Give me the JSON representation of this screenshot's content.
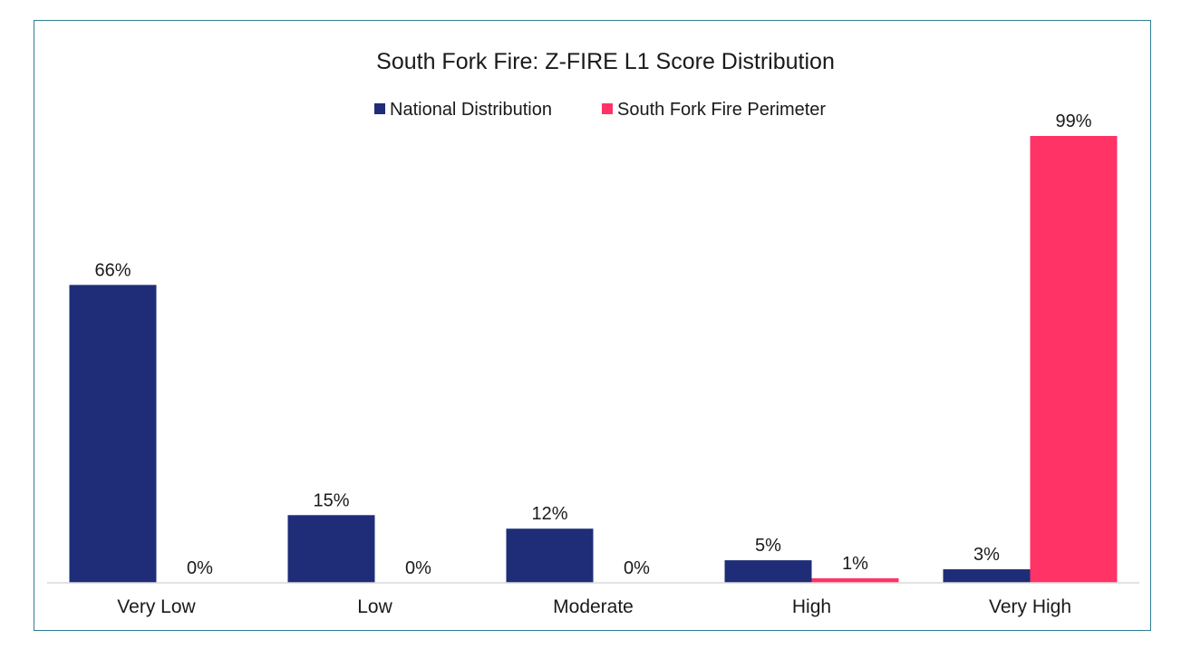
{
  "chart_data": {
    "type": "bar",
    "title": "South Fork Fire: Z-FIRE L1 Score Distribution",
    "xlabel": "",
    "ylabel": "",
    "categories": [
      "Very Low",
      "Low",
      "Moderate",
      "High",
      "Very High"
    ],
    "series": [
      {
        "name": "National Distribution",
        "color": "#1f2d78",
        "values": [
          66,
          15,
          12,
          5,
          3
        ],
        "labels": [
          "66%",
          "15%",
          "12%",
          "5%",
          "3%"
        ]
      },
      {
        "name": "South Fork Fire Perimeter",
        "color": "#ff3366",
        "values": [
          0,
          0,
          0,
          1,
          99
        ],
        "labels": [
          "0%",
          "0%",
          "0%",
          "1%",
          "99%"
        ]
      }
    ],
    "ylim": [
      0,
      100
    ],
    "grid": false,
    "legend_position": "top-center",
    "axis_color": "#d9d9d9",
    "frame_color": "#2e7f94"
  }
}
